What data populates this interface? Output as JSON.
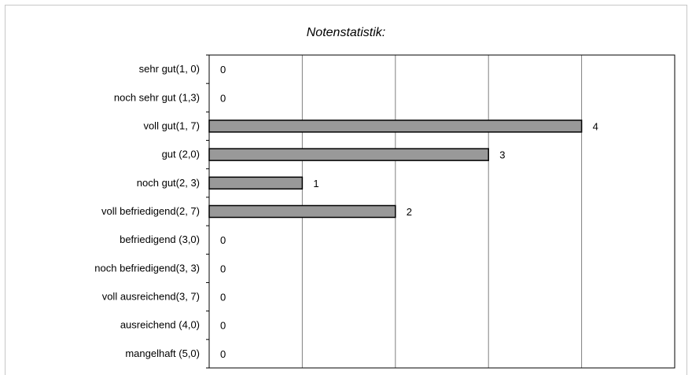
{
  "chart_data": {
    "type": "bar",
    "orientation": "horizontal",
    "title": "Notenstatistik:",
    "categories": [
      "sehr gut(1, 0)",
      "noch sehr gut (1,3)",
      "voll gut(1, 7)",
      "gut (2,0)",
      "noch gut(2, 3)",
      "voll befriedigend(2, 7)",
      "befriedigend (3,0)",
      "noch befriedigend(3, 3)",
      "voll ausreichend(3, 7)",
      "ausreichend (4,0)",
      "mangelhaft (5,0)"
    ],
    "values": [
      0,
      0,
      4,
      3,
      1,
      2,
      0,
      0,
      0,
      0,
      0
    ],
    "xlim": [
      0,
      5
    ],
    "grid": true,
    "bar_color": "#999999",
    "data_labels": true
  }
}
